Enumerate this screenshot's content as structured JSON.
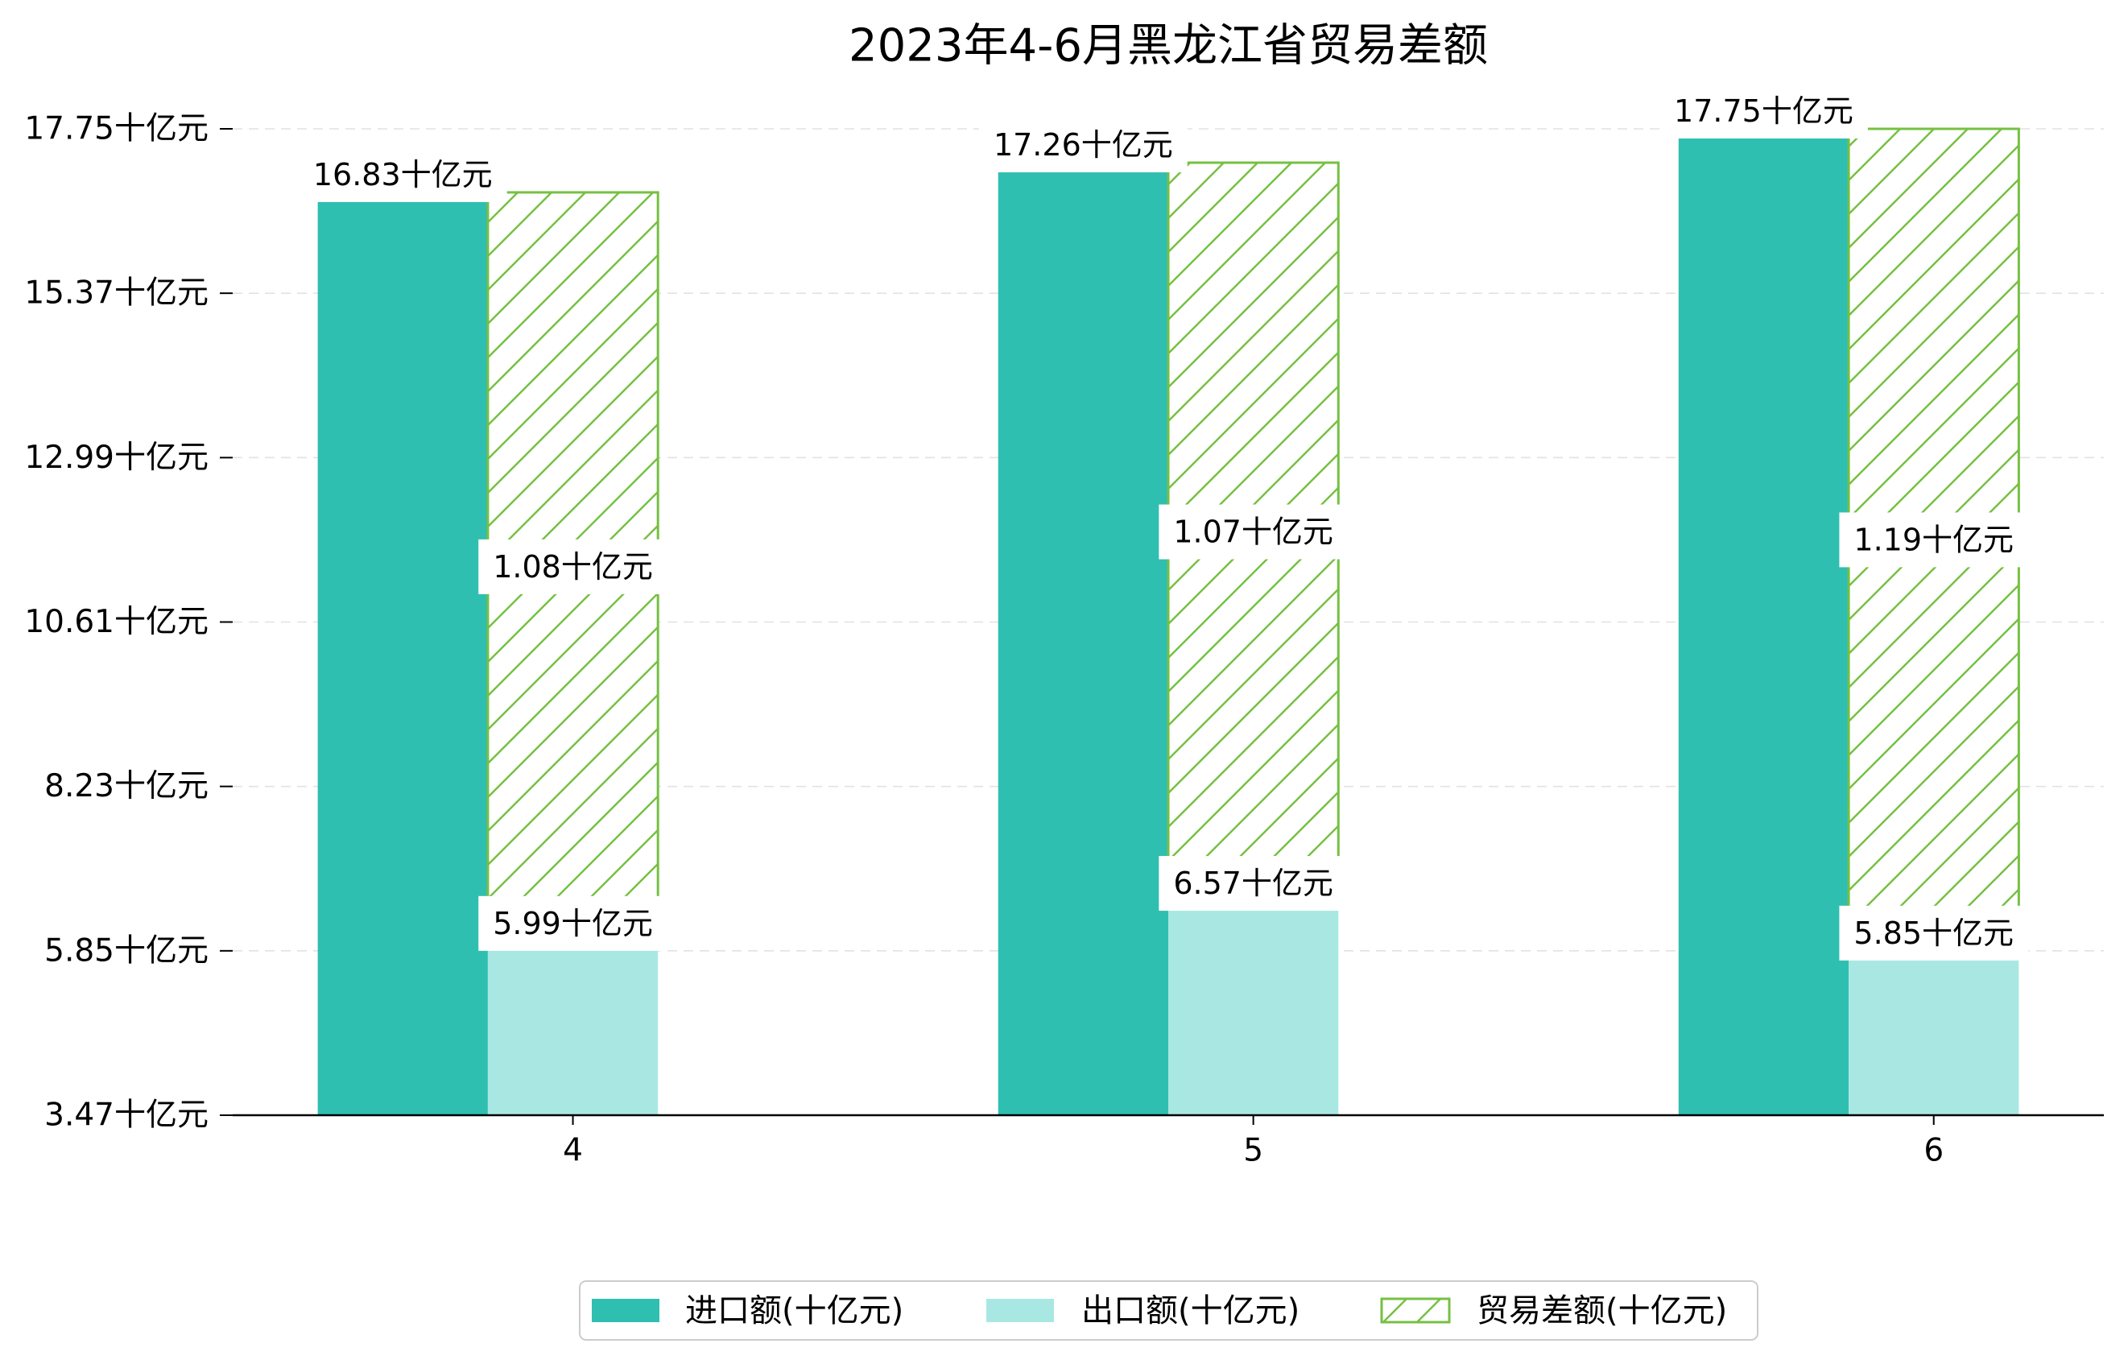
{
  "chart_data": {
    "type": "bar",
    "title": "2023年4-6月黑龙江省贸易差额",
    "categories": [
      "4",
      "5",
      "6"
    ],
    "series": [
      {
        "name": "进口额(十亿元)",
        "values": [
          16.83,
          17.26,
          17.75
        ],
        "labels": [
          "16.83十亿元",
          "17.26十亿元",
          "17.75十亿元"
        ],
        "color": "#2fbfb1"
      },
      {
        "name": "出口额(十亿元)",
        "values": [
          5.99,
          6.57,
          5.85
        ],
        "labels": [
          "5.99十亿元",
          "6.57十亿元",
          "5.85十亿元"
        ],
        "color": "#a9e8e2"
      },
      {
        "name": "贸易差额(十亿元)",
        "values": [
          1.08,
          1.07,
          1.19
        ],
        "labels": [
          "1.08十亿元",
          "1.07十亿元",
          "1.19十亿元"
        ],
        "color": "#76c043"
      }
    ],
    "ylim": [
      3.47,
      17.75
    ],
    "yticks": [
      3.47,
      5.85,
      8.23,
      10.61,
      12.99,
      15.37,
      17.75
    ],
    "ytick_labels": [
      "3.47十亿元",
      "5.85十亿元",
      "8.23十亿元",
      "10.61十亿元",
      "12.99十亿元",
      "15.37十亿元",
      "17.75十亿元"
    ],
    "grid": true,
    "legend": "bottom-center"
  }
}
